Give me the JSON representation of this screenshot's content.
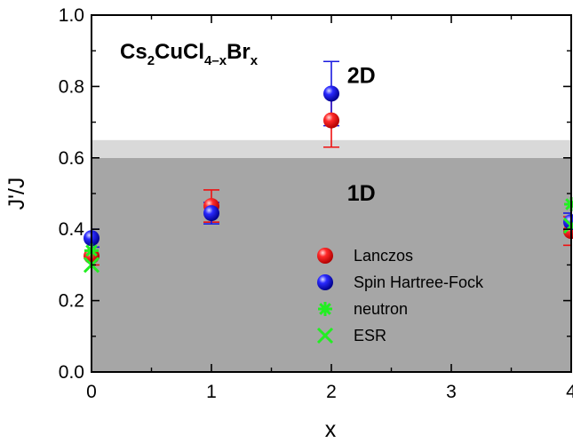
{
  "chart_data": {
    "type": "scatter",
    "title_parts": [
      {
        "text": "Cs",
        "sub": false
      },
      {
        "text": "2",
        "sub": true
      },
      {
        "text": "CuCl",
        "sub": false
      },
      {
        "text": "4–x",
        "sub": true
      },
      {
        "text": "Br",
        "sub": false
      },
      {
        "text": "x",
        "sub": true
      }
    ],
    "xlabel": "x",
    "ylabel": "J'/J",
    "xlim": [
      0,
      4
    ],
    "ylim": [
      0.0,
      1.0
    ],
    "x_ticks": [
      "0",
      "1",
      "2",
      "3",
      "4"
    ],
    "y_ticks": [
      "0.0",
      "0.2",
      "0.4",
      "0.6",
      "0.8",
      "1.0"
    ],
    "regions": [
      {
        "label": "1D",
        "y_from": 0.0,
        "y_to": 0.6,
        "color": "#a6a6a6"
      },
      {
        "label": "",
        "y_from": 0.6,
        "y_to": 0.65,
        "color": "#d9d9d9"
      },
      {
        "label": "2D",
        "y_from": 0.65,
        "y_to": 1.0,
        "color": "#ffffff"
      }
    ],
    "region_label_positions": [
      {
        "label": "2D",
        "x": 2.25,
        "y": 0.81
      },
      {
        "label": "1D",
        "x": 2.25,
        "y": 0.48
      }
    ],
    "series": [
      {
        "name": "Lanczos",
        "marker": "sphere",
        "color": "#ee1111",
        "points": [
          {
            "x": 0,
            "y": 0.325,
            "err": 0.025
          },
          {
            "x": 1,
            "y": 0.465,
            "err": 0.045
          },
          {
            "x": 2,
            "y": 0.705,
            "err": 0.075
          },
          {
            "x": 4,
            "y": 0.395,
            "err": 0.04
          }
        ]
      },
      {
        "name": "Spin Hartree-Fock",
        "marker": "sphere",
        "color": "#1a1adf",
        "points": [
          {
            "x": 0,
            "y": 0.375,
            "err": 0.025
          },
          {
            "x": 1,
            "y": 0.445,
            "err": 0.03
          },
          {
            "x": 2,
            "y": 0.78,
            "err": 0.09
          },
          {
            "x": 4,
            "y": 0.42,
            "err": 0.025
          }
        ]
      },
      {
        "name": "neutron",
        "marker": "asterisk",
        "color": "#22ee22",
        "points": [
          {
            "x": 0,
            "y": 0.34
          },
          {
            "x": 4,
            "y": 0.47
          }
        ]
      },
      {
        "name": "ESR",
        "marker": "cross",
        "color": "#22ee22",
        "points": [
          {
            "x": 0,
            "y": 0.3
          },
          {
            "x": 4,
            "y": 0.41
          }
        ]
      }
    ],
    "legend_position": "center-right"
  }
}
